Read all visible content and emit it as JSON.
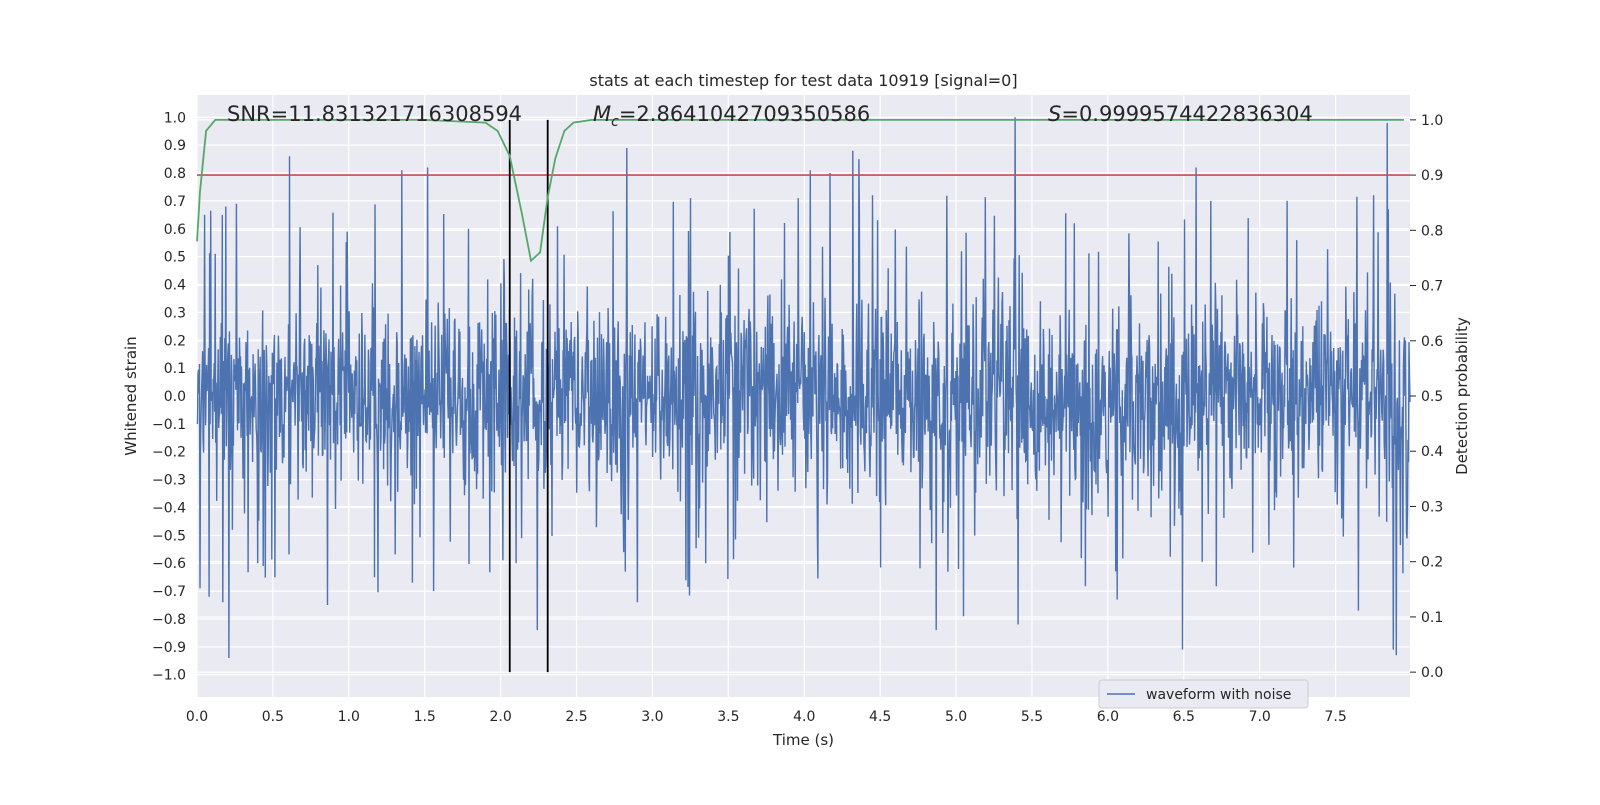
{
  "chart_data": {
    "type": "line",
    "title": "stats at each timestep for test data 10919 [signal=0]",
    "xlabel": "Time (s)",
    "ylabel": "Whitened strain",
    "y2label": "Detection probability",
    "xlim": [
      0.0,
      7.99
    ],
    "ylim": [
      -1.08,
      1.08
    ],
    "y2lim": [
      -0.045,
      1.045
    ],
    "xticks": [
      "0.0",
      "0.5",
      "1.0",
      "1.5",
      "2.0",
      "2.5",
      "3.0",
      "3.5",
      "4.0",
      "4.5",
      "5.0",
      "5.5",
      "6.0",
      "6.5",
      "7.0",
      "7.5"
    ],
    "yticks": [
      "1.0",
      "0.9",
      "0.8",
      "0.7",
      "0.6",
      "0.5",
      "0.4",
      "0.3",
      "0.2",
      "0.1",
      "0.0",
      "−0.1",
      "−0.2",
      "−0.3",
      "−0.4",
      "−0.5",
      "−0.6",
      "−0.7",
      "−0.8",
      "−0.9",
      "−1.0"
    ],
    "y2ticks": [
      "1.0",
      "0.9",
      "0.8",
      "0.7",
      "0.6",
      "0.5",
      "0.4",
      "0.3",
      "0.2",
      "0.1",
      "0.0"
    ],
    "annotations": {
      "snr": "SNR=11.831321716308594",
      "mc_symbol": "M",
      "mc_sub": "c",
      "mc_value": "=2.8641042709350586",
      "s_symbol": "S",
      "s_value": "=0.9999574422836304"
    },
    "legend": {
      "label": "waveform with noise",
      "position": "lower-right"
    },
    "threshold": {
      "value": 0.9,
      "axis": "y2",
      "color": "#c44e52"
    },
    "vertical_lines": [
      2.06,
      2.31
    ],
    "series": [
      {
        "name": "waveform with noise",
        "axis": "y",
        "color": "#4c72b0",
        "kind": "noise",
        "n_samples": 2400,
        "x_range": [
          0.0,
          7.99
        ],
        "core_amplitude": 0.32,
        "seed": 10919,
        "peaks": [
          {
            "x": 0.05,
            "y": 0.65
          },
          {
            "x": 0.02,
            "y": -0.69
          },
          {
            "x": 0.08,
            "y": -0.72
          },
          {
            "x": 0.19,
            "y": 0.68
          },
          {
            "x": 0.21,
            "y": -0.94
          },
          {
            "x": 0.17,
            "y": -0.74
          },
          {
            "x": 0.26,
            "y": 0.69
          },
          {
            "x": 0.4,
            "y": -0.6
          },
          {
            "x": 0.61,
            "y": 0.86
          },
          {
            "x": 0.86,
            "y": -0.75
          },
          {
            "x": 0.99,
            "y": 0.59
          },
          {
            "x": 1.17,
            "y": -0.65
          },
          {
            "x": 1.35,
            "y": 0.81
          },
          {
            "x": 1.42,
            "y": -0.67
          },
          {
            "x": 1.52,
            "y": 0.82
          },
          {
            "x": 1.56,
            "y": -0.7
          },
          {
            "x": 1.79,
            "y": 0.6
          },
          {
            "x": 2.1,
            "y": -0.6
          },
          {
            "x": 2.24,
            "y": -0.84
          },
          {
            "x": 2.83,
            "y": 0.89
          },
          {
            "x": 2.81,
            "y": -0.56
          },
          {
            "x": 2.82,
            "y": -0.63
          },
          {
            "x": 2.9,
            "y": -0.74
          },
          {
            "x": 3.25,
            "y": 0.71
          },
          {
            "x": 3.35,
            "y": -0.6
          },
          {
            "x": 3.96,
            "y": 0.71
          },
          {
            "x": 4.04,
            "y": 0.81
          },
          {
            "x": 4.17,
            "y": 0.8
          },
          {
            "x": 4.32,
            "y": 0.88
          },
          {
            "x": 4.36,
            "y": 0.85
          },
          {
            "x": 4.45,
            "y": 0.72
          },
          {
            "x": 4.87,
            "y": -0.84
          },
          {
            "x": 5.05,
            "y": -0.79
          },
          {
            "x": 5.39,
            "y": 1.0
          },
          {
            "x": 5.41,
            "y": -0.82
          },
          {
            "x": 6.06,
            "y": -0.73
          },
          {
            "x": 6.49,
            "y": -0.91
          },
          {
            "x": 6.58,
            "y": 0.82
          },
          {
            "x": 7.18,
            "y": 0.7
          },
          {
            "x": 7.65,
            "y": -0.77
          },
          {
            "x": 7.84,
            "y": 0.98
          },
          {
            "x": 7.88,
            "y": -0.91
          },
          {
            "x": 7.9,
            "y": -0.93
          },
          {
            "x": 7.75,
            "y": 0.72
          }
        ]
      },
      {
        "name": "detection probability",
        "axis": "y2",
        "color": "#55a868",
        "x": [
          0.0,
          0.02,
          0.06,
          0.12,
          0.5,
          1.0,
          1.5,
          1.9,
          1.98,
          2.06,
          2.14,
          2.2,
          2.26,
          2.31,
          2.36,
          2.42,
          2.48,
          2.6,
          3.0,
          4.0,
          5.0,
          6.0,
          7.0,
          7.95
        ],
        "y": [
          0.78,
          0.87,
          0.98,
          1.0,
          1.0,
          1.0,
          1.0,
          0.995,
          0.98,
          0.935,
          0.83,
          0.745,
          0.76,
          0.86,
          0.93,
          0.98,
          0.995,
          1.0,
          1.0,
          1.0,
          1.0,
          1.0,
          1.0,
          1.0
        ]
      }
    ]
  }
}
